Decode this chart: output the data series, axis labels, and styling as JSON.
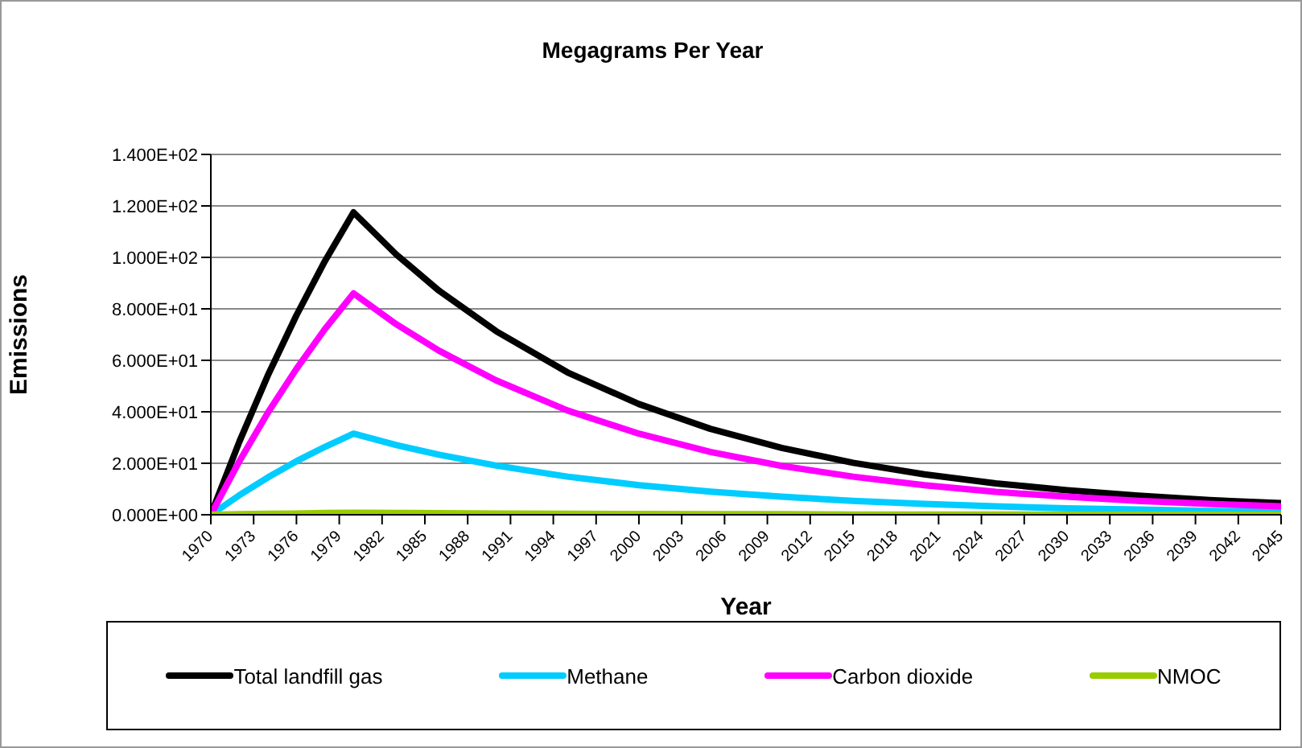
{
  "chart_data": {
    "type": "line",
    "title": "Megagrams Per Year",
    "xlabel": "Year",
    "ylabel": "Emissions",
    "x": [
      1970,
      1972,
      1974,
      1976,
      1978,
      1980,
      1983,
      1986,
      1990,
      1995,
      2000,
      2005,
      2010,
      2015,
      2020,
      2025,
      2030,
      2035,
      2040,
      2045
    ],
    "series": [
      {
        "name": "Total landfill gas",
        "color": "#000000",
        "values": [
          0,
          28.4,
          54.2,
          77.5,
          98.6,
          117.5,
          101.1,
          87.0,
          71.3,
          55.3,
          43.0,
          33.4,
          26.0,
          20.2,
          15.7,
          12.2,
          9.5,
          7.4,
          5.7,
          4.5
        ]
      },
      {
        "name": "Methane",
        "color": "#00ccff",
        "values": [
          0,
          7.6,
          14.5,
          20.8,
          26.4,
          31.5,
          27.1,
          23.3,
          19.1,
          14.8,
          11.5,
          9.0,
          7.0,
          5.4,
          4.2,
          3.3,
          2.5,
          2.0,
          1.5,
          1.2
        ]
      },
      {
        "name": "Carbon dioxide",
        "color": "#ff00ff",
        "values": [
          0,
          20.8,
          39.7,
          56.7,
          72.2,
          86.0,
          74.0,
          63.7,
          52.2,
          40.5,
          31.5,
          24.4,
          19.0,
          14.8,
          11.5,
          8.9,
          7.0,
          5.4,
          4.2,
          3.3
        ]
      },
      {
        "name": "NMOC",
        "color": "#99cc00",
        "values": [
          0,
          0.2,
          0.4,
          0.5,
          0.7,
          0.8,
          0.7,
          0.6,
          0.5,
          0.4,
          0.3,
          0.2,
          0.2,
          0.1,
          0.1,
          0.1,
          0.1,
          0.1,
          0,
          0
        ]
      }
    ],
    "xlim": [
      1970,
      2045
    ],
    "xticks": [
      1970,
      1973,
      1976,
      1979,
      1982,
      1985,
      1988,
      1991,
      1994,
      1997,
      2000,
      2003,
      2006,
      2009,
      2012,
      2015,
      2018,
      2021,
      2024,
      2027,
      2030,
      2033,
      2036,
      2039,
      2042,
      2045
    ],
    "ylim": [
      0,
      140
    ],
    "yticks": [
      {
        "value": 0,
        "label": "0.000E+00"
      },
      {
        "value": 20,
        "label": "2.000E+01"
      },
      {
        "value": 40,
        "label": "4.000E+01"
      },
      {
        "value": 60,
        "label": "6.000E+01"
      },
      {
        "value": 80,
        "label": "8.000E+01"
      },
      {
        "value": 100,
        "label": "1.000E+02"
      },
      {
        "value": 120,
        "label": "1.200E+02"
      },
      {
        "value": 140,
        "label": "1.400E+02"
      }
    ],
    "grid": "y",
    "legend": "bottom",
    "marker": "none",
    "line_style": "solid"
  }
}
